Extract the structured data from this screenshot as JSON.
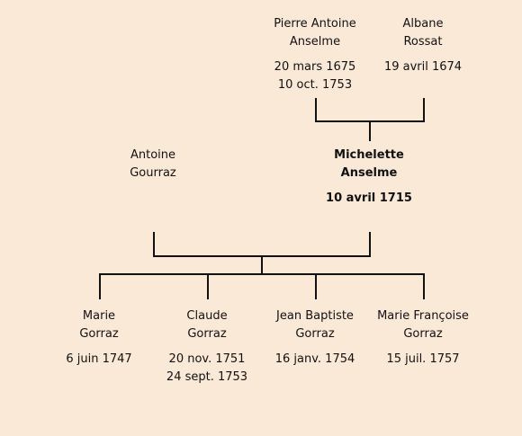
{
  "colors": {
    "background": "#fbe9d8",
    "line": "#111111",
    "text": "#111111"
  },
  "grandparents": {
    "father": {
      "first_name": "Pierre Antoine",
      "last_name": "Anselme",
      "birth": "20 mars 1675",
      "death": "10 oct. 1753"
    },
    "mother": {
      "first_name": "Albane",
      "last_name": "Rossat",
      "birth": "19 avril 1674"
    }
  },
  "parents": {
    "father": {
      "first_name": "Antoine",
      "last_name": "Gourraz"
    },
    "mother": {
      "first_name": "Michelette",
      "last_name": "Anselme",
      "birth": "10 avril 1715"
    }
  },
  "children": [
    {
      "first_name": "Marie",
      "last_name": "Gorraz",
      "birth": "6 juin 1747"
    },
    {
      "first_name": "Claude",
      "last_name": "Gorraz",
      "birth": "20 nov. 1751",
      "death": "24 sept. 1753"
    },
    {
      "first_name": "Jean Baptiste",
      "last_name": "Gorraz",
      "birth": "16 janv. 1754"
    },
    {
      "first_name": "Marie Françoise",
      "last_name": "Gorraz",
      "birth": "15 juil. 1757"
    }
  ]
}
